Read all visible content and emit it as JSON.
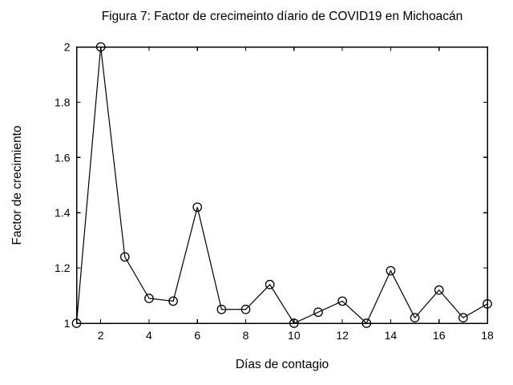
{
  "chart_data": {
    "type": "line",
    "title": "Figura 7: Factor de crecimeinto díario de COVID19 en Michoacán",
    "xlabel": "Días de contagio",
    "ylabel": "Factor de crecimiento",
    "x": [
      1,
      2,
      3,
      4,
      5,
      6,
      7,
      8,
      9,
      10,
      11,
      12,
      13,
      14,
      15,
      16,
      17,
      18
    ],
    "y": [
      1.0,
      2.0,
      1.24,
      1.09,
      1.08,
      1.42,
      1.05,
      1.05,
      1.14,
      1.0,
      1.04,
      1.08,
      1.0,
      1.19,
      1.02,
      1.12,
      1.02,
      1.07
    ],
    "xlim": [
      1,
      18
    ],
    "ylim": [
      1,
      2
    ],
    "x_ticks": [
      2,
      4,
      6,
      8,
      10,
      12,
      14,
      16,
      18
    ],
    "y_ticks": [
      1,
      1.2,
      1.4,
      1.6,
      1.8,
      2
    ],
    "grid": false,
    "legend_position": "none",
    "marker": "open-circle",
    "line_color": "#000000",
    "background_color": "#ffffff"
  }
}
